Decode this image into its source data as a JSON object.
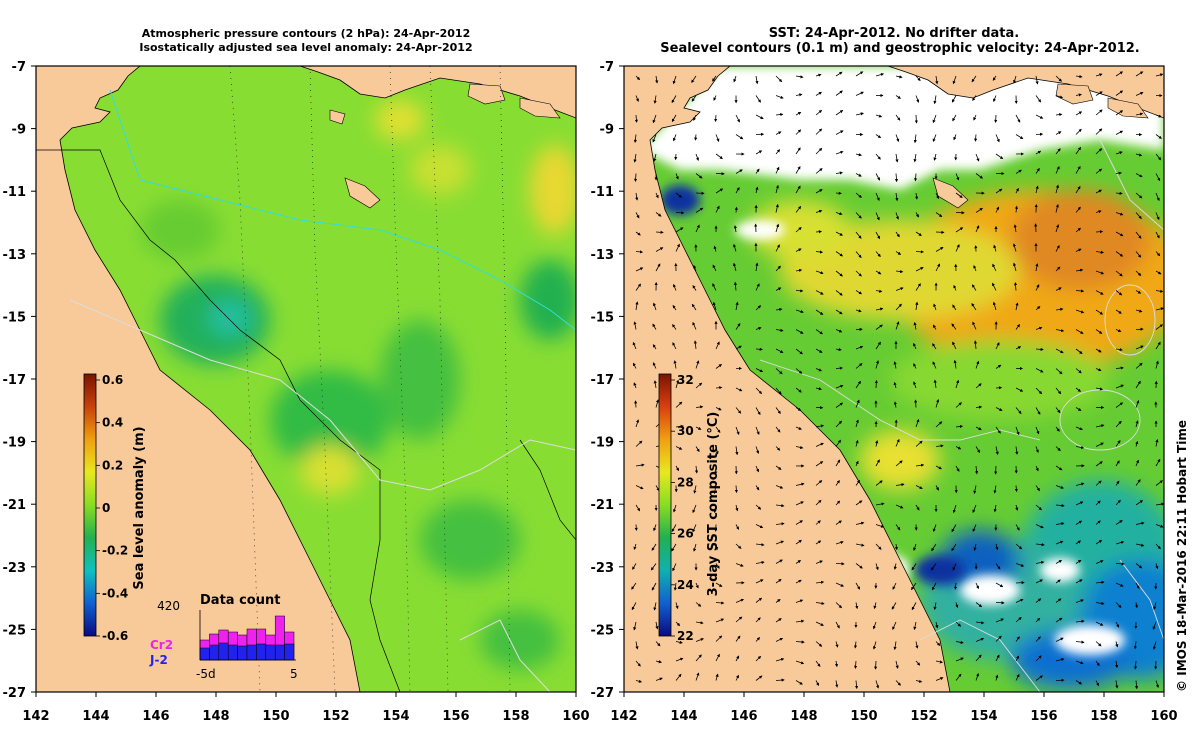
{
  "left_panel": {
    "title_line1": "Atmospheric pressure contours (2 hPa): 24-Apr-2012",
    "title_line2": "Isostatically adjusted sea level anomaly: 24-Apr-2012",
    "colorbar": {
      "label": "Sea level anomaly (m)",
      "ticks": [
        "0.6",
        "0.4",
        "0.2",
        "0",
        "-0.2",
        "-0.4",
        "-0.6"
      ],
      "stops": [
        "#7a1500",
        "#c8420a",
        "#f0a010",
        "#e8e820",
        "#88dd22",
        "#22b050",
        "#10c0c0",
        "#1060d0",
        "#0a0a80"
      ]
    },
    "data_count": {
      "title": "Data count",
      "ymax_label": "420",
      "series_top_label": "Cr2",
      "series_bottom_label": "J-2",
      "x_left_label": "-5d",
      "x_right_label": "5",
      "series_top_color": "#ee22ee",
      "series_bottom_color": "#2222ee",
      "cr2_values": [
        0.4,
        0.52,
        0.6,
        0.56,
        0.5,
        0.62,
        0.62,
        0.5,
        0.88,
        0.56
      ],
      "j2_values": [
        0.24,
        0.3,
        0.34,
        0.3,
        0.28,
        0.3,
        0.32,
        0.3,
        0.3,
        0.32
      ]
    }
  },
  "right_panel": {
    "title_line1": "SST: 24-Apr-2012. No drifter data.",
    "title_line2": "Sealevel contours (0.1 m) and geostrophic velocity: 24-Apr-2012.",
    "colorbar": {
      "label": "3-day SST composite (°C)",
      "ticks": [
        "32",
        "30",
        "28",
        "26",
        "24",
        "22"
      ],
      "stops": [
        "#7a1500",
        "#d84010",
        "#f0a010",
        "#e8e820",
        "#88dd22",
        "#22b050",
        "#10b0b0",
        "#1060d0",
        "#0a0a80"
      ]
    }
  },
  "axes": {
    "lon_labels": [
      "142",
      "144",
      "146",
      "148",
      "150",
      "152",
      "154",
      "156",
      "158",
      "160"
    ],
    "lat_labels": [
      "-7",
      "-9",
      "-11",
      "-13",
      "-15",
      "-17",
      "-19",
      "-21",
      "-23",
      "-25",
      "-27"
    ]
  },
  "colors": {
    "land": "#f8c999",
    "sla_background": "#88dd33",
    "sst_background": "#66cc33"
  },
  "credit": "© IMOS 18-Mar-2016 22:11 Hobart Time"
}
